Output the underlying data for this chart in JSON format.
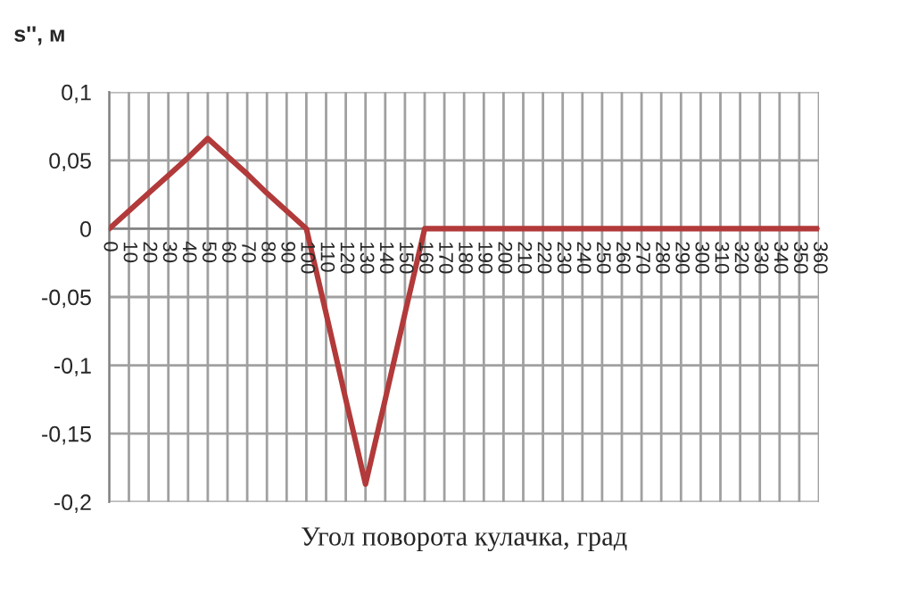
{
  "chart_data": {
    "type": "line",
    "xlabel": "Угол поворота кулачка, град",
    "ylabel": "s'', м",
    "categories": [
      "0",
      "10",
      "20",
      "30",
      "40",
      "50",
      "60",
      "70",
      "80",
      "90",
      "100",
      "110",
      "120",
      "130",
      "140",
      "150",
      "160",
      "170",
      "180",
      "190",
      "200",
      "210",
      "220",
      "230",
      "240",
      "250",
      "260",
      "270",
      "280",
      "290",
      "300",
      "310",
      "320",
      "330",
      "340",
      "350",
      "360"
    ],
    "series": [
      {
        "color": "#b23a3a",
        "values": [
          0,
          0.013,
          0.026,
          0.039,
          0.052,
          0.066,
          0.053,
          0.04,
          0.026,
          0.013,
          0,
          -0.062,
          -0.125,
          -0.187,
          -0.125,
          -0.062,
          0,
          0,
          0,
          0,
          0,
          0,
          0,
          0,
          0,
          0,
          0,
          0,
          0,
          0,
          0,
          0,
          0,
          0,
          0,
          0,
          0
        ]
      }
    ],
    "ylim": [
      -0.2,
      0.1
    ],
    "yticks": [
      {
        "value": -0.2,
        "label": "-0,2"
      },
      {
        "value": -0.15,
        "label": "-0,15"
      },
      {
        "value": -0.1,
        "label": "-0,1"
      },
      {
        "value": -0.05,
        "label": "-0,05"
      },
      {
        "value": 0,
        "label": "0"
      },
      {
        "value": 0.05,
        "label": "0,05"
      },
      {
        "value": 0.1,
        "label": "0,1"
      }
    ],
    "grid": true,
    "legend": false,
    "marker": "none",
    "line_style": "solid"
  }
}
